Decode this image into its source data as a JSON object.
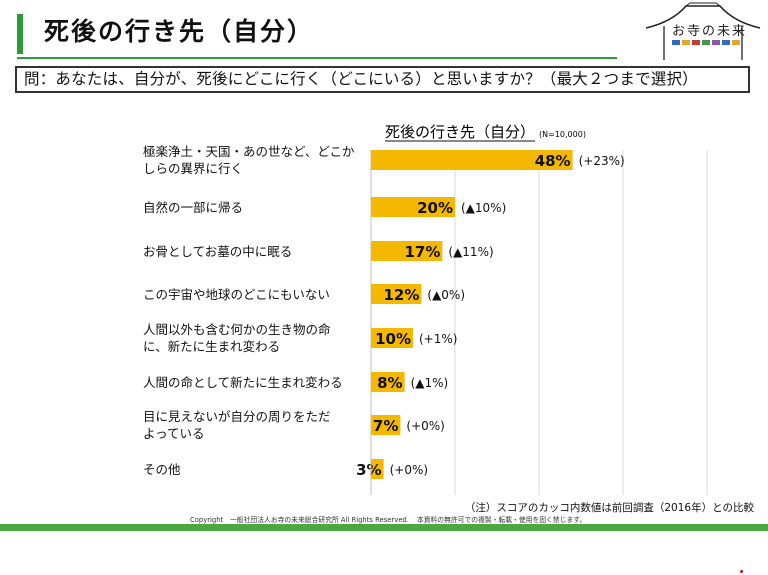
{
  "header": {
    "title": "死後の行き先（自分）",
    "logo_text": "お寺の未来",
    "logo_colors": [
      "#2f6bbf",
      "#e2a72a",
      "#c23b3b",
      "#3f9a4a",
      "#8a55a8",
      "#2f6bbf",
      "#e2a72a"
    ],
    "accent_color": "#2f9a38"
  },
  "question": {
    "text": "問：あなたは、自分が、死後にどこに行く（どこにいる）と思いますか？（最大２つまで選択）"
  },
  "chart_data": {
    "type": "bar",
    "orientation": "horizontal",
    "title": "死後の行き先（自分）",
    "subtitle": "(N=10,000)",
    "unit": "%",
    "bar_color": "#f5b800",
    "grid": "vertical",
    "xlim": [
      0,
      100
    ],
    "categories": [
      [
        "極楽浄土・天国・あの世など、どこか",
        "しらの異界に行く"
      ],
      [
        "自然の一部に帰る"
      ],
      [
        "お骨としてお墓の中に眠る"
      ],
      [
        "この宇宙や地球のどこにもいない"
      ],
      [
        "人間以外も含む何かの生き物の命",
        "に、新たに生まれ変わる"
      ],
      [
        "人間の命として新たに生まれ変わる"
      ],
      [
        "目に見えないが自分の周りをただ",
        "よっている"
      ],
      [
        "その他"
      ]
    ],
    "values": [
      48,
      20,
      17,
      12,
      10,
      8,
      7,
      3
    ],
    "value_labels": [
      "48%",
      "20%",
      "17%",
      "12%",
      "10%",
      "8%",
      "7%",
      "3%"
    ],
    "changes": [
      "(+23%)",
      "(▲10%)",
      "(▲11%)",
      "(▲0%)",
      "(+1%)",
      "(▲1%)",
      "(+0%)",
      "(+0%)"
    ]
  },
  "footnote": "（注）スコアのカッコ内数値は前回調査（2016年）との比較",
  "copyright": {
    "left": "Copyright　一般社団法人お寺の未来総合研究所 All Rights Reserved.",
    "right": "本資料の無許可での複製・転載・使用を固く禁じます。"
  },
  "footer_color": "#49a842"
}
